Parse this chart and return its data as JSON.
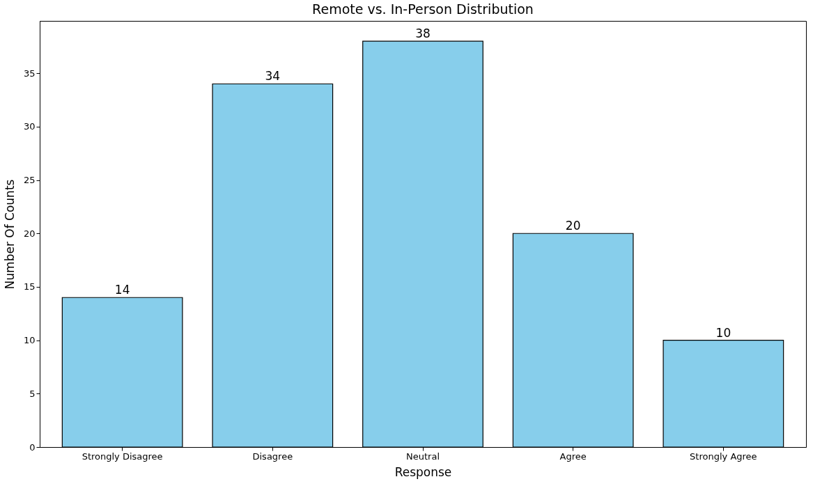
{
  "chart_data": {
    "type": "bar",
    "title": "Remote vs. In-Person Distribution",
    "xlabel": "Response",
    "ylabel": "Number Of Counts",
    "categories": [
      "Strongly Disagree",
      "Disagree",
      "Neutral",
      "Agree",
      "Strongly Agree"
    ],
    "values": [
      14,
      34,
      38,
      20,
      10
    ],
    "color": "#87ceeb",
    "ylim": [
      0,
      39.9
    ],
    "yticks": [
      0,
      5,
      10,
      15,
      20,
      25,
      30,
      35
    ],
    "grid": false,
    "data_labels": true
  }
}
